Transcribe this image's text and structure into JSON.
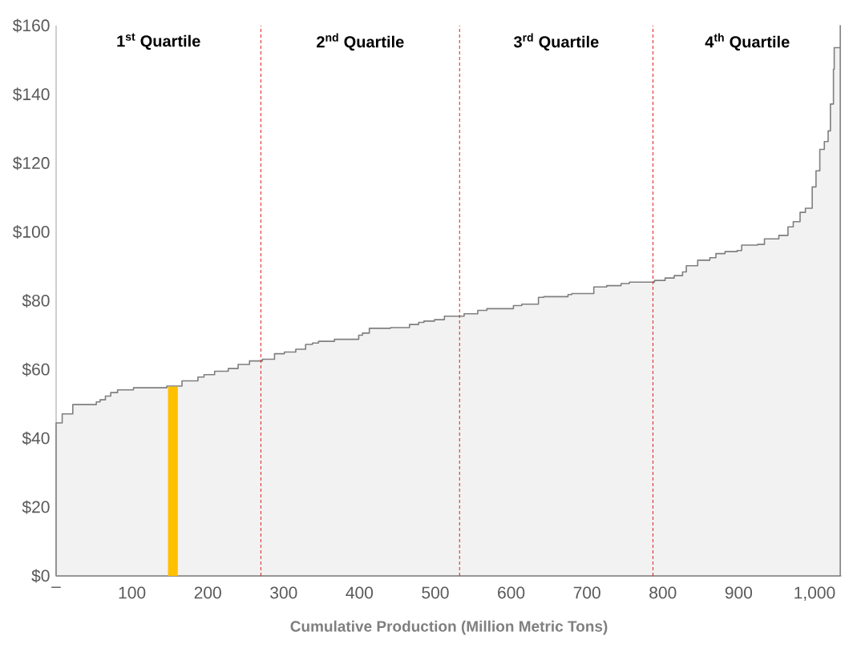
{
  "chart_data": {
    "type": "area",
    "xlabel": "Cumulative Production (Million Metric Tons)",
    "xlim": [
      0,
      1036
    ],
    "ylim": [
      0,
      160
    ],
    "xticks": [
      {
        "value": 0,
        "label": "–"
      },
      100,
      200,
      300,
      400,
      500,
      600,
      700,
      800,
      900,
      {
        "value": 1000,
        "label": "1,000"
      }
    ],
    "yticks": [
      {
        "value": 0,
        "label": "$0"
      },
      {
        "value": 20,
        "label": "$20"
      },
      {
        "value": 40,
        "label": "$40"
      },
      {
        "value": 60,
        "label": "$60"
      },
      {
        "value": 80,
        "label": "$80"
      },
      {
        "value": 100,
        "label": "$100"
      },
      {
        "value": 120,
        "label": "$120"
      },
      {
        "value": 140,
        "label": "$140"
      },
      {
        "value": 160,
        "label": "$160"
      }
    ],
    "series": [
      {
        "color": "#7f7f7f",
        "x": [
          0,
          8,
          22,
          53,
          58,
          65,
          72,
          81,
          102,
          146,
          166,
          187,
          195,
          209,
          227,
          240,
          255,
          272,
          288,
          301,
          316,
          329,
          338,
          346,
          367,
          399,
          404,
          413,
          441,
          466,
          478,
          485,
          499,
          512,
          538,
          556,
          568,
          603,
          614,
          636,
          643,
          675,
          680,
          709,
          726,
          745,
          756,
          789,
          803,
          815,
          826,
          831,
          846,
          862,
          870,
          882,
          898,
          904,
          925,
          934,
          953,
          965,
          972,
          981,
          988,
          997,
          1002,
          1007,
          1013,
          1018,
          1021,
          1025,
          1026,
          1034
        ],
        "values": [
          44.5,
          47.1,
          49.8,
          50.6,
          51.2,
          52.3,
          53.3,
          54.1,
          54.7,
          55.2,
          56.7,
          57.8,
          58.5,
          59.5,
          60.3,
          61.5,
          62.5,
          63.0,
          64.6,
          65.1,
          65.9,
          67.3,
          67.7,
          68.2,
          68.8,
          70.0,
          70.6,
          72.0,
          72.2,
          73.1,
          73.7,
          74.1,
          74.5,
          75.5,
          76.2,
          77.2,
          77.7,
          78.6,
          79.0,
          81.0,
          81.2,
          81.8,
          82.1,
          84.0,
          84.4,
          85.0,
          85.4,
          85.9,
          86.6,
          87.3,
          88.4,
          90.2,
          91.8,
          92.5,
          93.7,
          94.3,
          94.6,
          96.2,
          96.4,
          98.0,
          99.0,
          101.5,
          103.0,
          105.7,
          106.9,
          113.1,
          117.8,
          124.0,
          126.3,
          129.4,
          137.2,
          147.3,
          153.6,
          160
        ]
      },
      {
        "type": "bar",
        "color": "#ffc000",
        "x": [
          154
        ],
        "values": [
          55
        ]
      }
    ],
    "ref_lines": [
      {
        "axis": "x",
        "value": 270,
        "color": "#e02020",
        "line_style": "dashed"
      },
      {
        "axis": "x",
        "value": 532,
        "color": "#e02020",
        "line_style": "dashed"
      },
      {
        "axis": "x",
        "value": 787,
        "color": "#e02020",
        "line_style": "dashed"
      }
    ],
    "annotations": [
      "1$^{st}$ Quartile",
      "2$^{nd}$ Quartile",
      "3$^{rd}$ Quartile",
      "4$^{th}$ Quartile"
    ]
  }
}
